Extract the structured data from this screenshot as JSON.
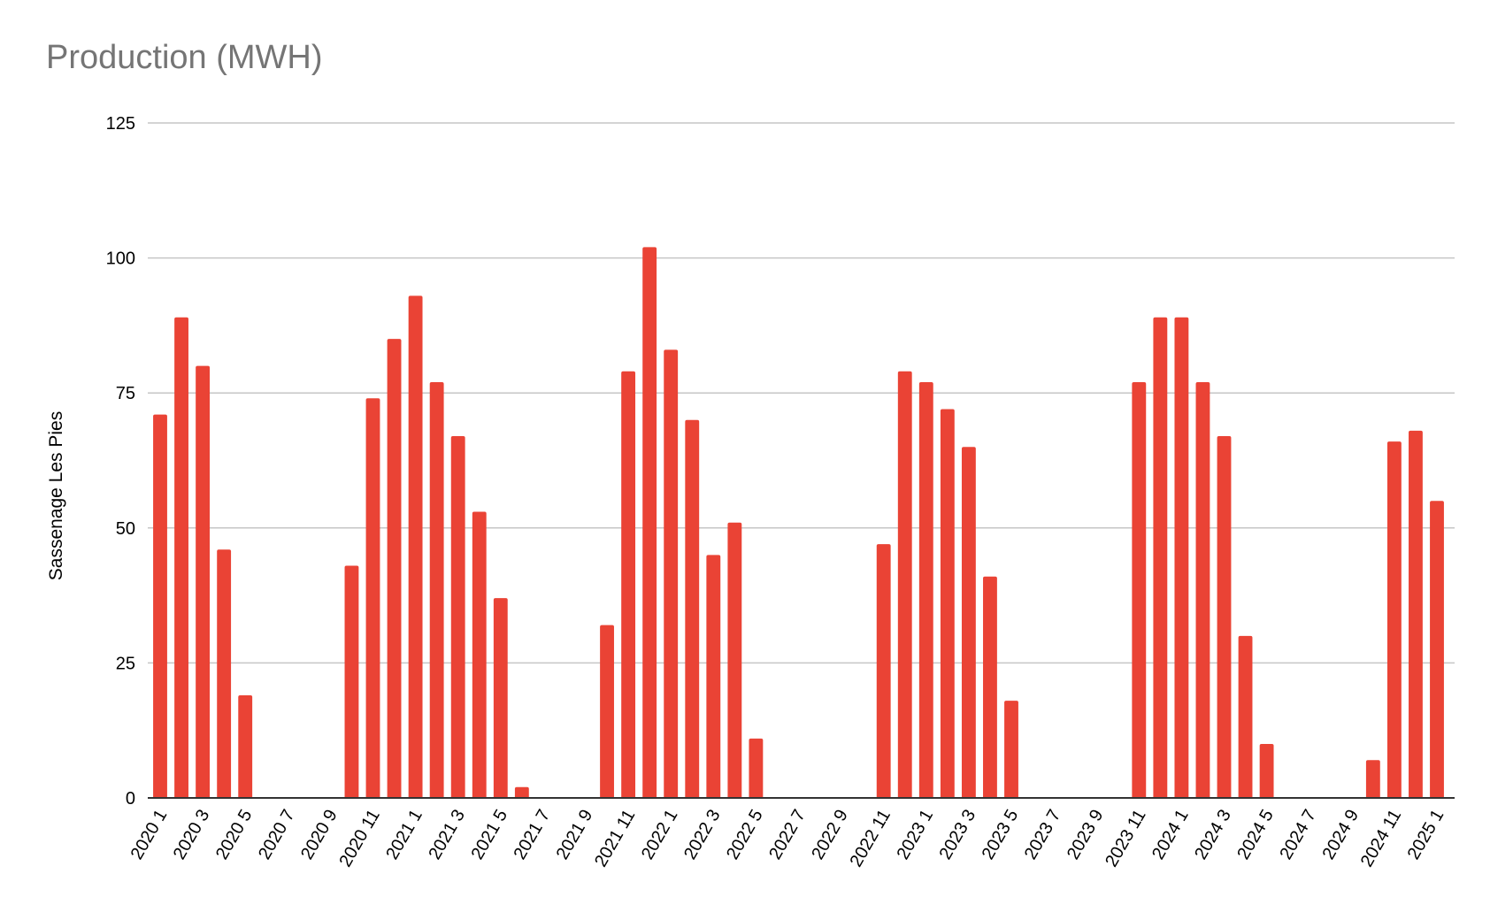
{
  "chart_data": {
    "type": "bar",
    "title": "Production (MWH)",
    "xlabel": "",
    "ylabel": "Sassenage Les Pies",
    "ylim": [
      0,
      125
    ],
    "yticks": [
      0,
      25,
      50,
      75,
      100,
      125
    ],
    "grid": true,
    "legend": "none",
    "bar_color": "#ea4335",
    "categories": [
      "2020 1",
      "2020 2",
      "2020 3",
      "2020 4",
      "2020 5",
      "2020 6",
      "2020 7",
      "2020 8",
      "2020 9",
      "2020 10",
      "2020 11",
      "2020 12",
      "2021 1",
      "2021 2",
      "2021 3",
      "2021 4",
      "2021 5",
      "2021 6",
      "2021 7",
      "2021 8",
      "2021 9",
      "2021 10",
      "2021 11",
      "2021 12",
      "2022 1",
      "2022 2",
      "2022 3",
      "2022 4",
      "2022 5",
      "2022 6",
      "2022 7",
      "2022 8",
      "2022 9",
      "2022 10",
      "2022 11",
      "2022 12",
      "2023 1",
      "2023 2",
      "2023 3",
      "2023 4",
      "2023 5",
      "2023 6",
      "2023 7",
      "2023 8",
      "2023 9",
      "2023 10",
      "2023 11",
      "2023 12",
      "2024 1",
      "2024 2",
      "2024 3",
      "2024 4",
      "2024 5",
      "2024 6",
      "2024 7",
      "2024 8",
      "2024 9",
      "2024 10",
      "2024 11",
      "2024 12",
      "2025 1",
      "2025 2"
    ],
    "visible_tick_labels": [
      "2020 1",
      "2020 3",
      "2020 5",
      "2020 7",
      "2020 9",
      "2020 11",
      "2021 1",
      "2021 3",
      "2021 5",
      "2021 7",
      "2021 9",
      "2021 11",
      "2022 1",
      "2022 3",
      "2022 5",
      "2022 7",
      "2022 9",
      "2022 11",
      "2023 1",
      "2023 3",
      "2023 5",
      "2023 7",
      "2023 9",
      "2023 11",
      "2024 1",
      "2024 3",
      "2024 5",
      "2024 7",
      "2024 9",
      "2024 11",
      "2025 1"
    ],
    "values": [
      71,
      89,
      80,
      46,
      19,
      0,
      0,
      0,
      0,
      43,
      74,
      85,
      93,
      77,
      67,
      53,
      37,
      2,
      0,
      0,
      0,
      32,
      79,
      102,
      83,
      70,
      45,
      51,
      11,
      0,
      0,
      0,
      0,
      0,
      47,
      79,
      77,
      72,
      65,
      41,
      18,
      0,
      0,
      0,
      0,
      0,
      77,
      89,
      89,
      77,
      67,
      30,
      10,
      0,
      0,
      0,
      0,
      7,
      66,
      68,
      55,
      0
    ]
  }
}
